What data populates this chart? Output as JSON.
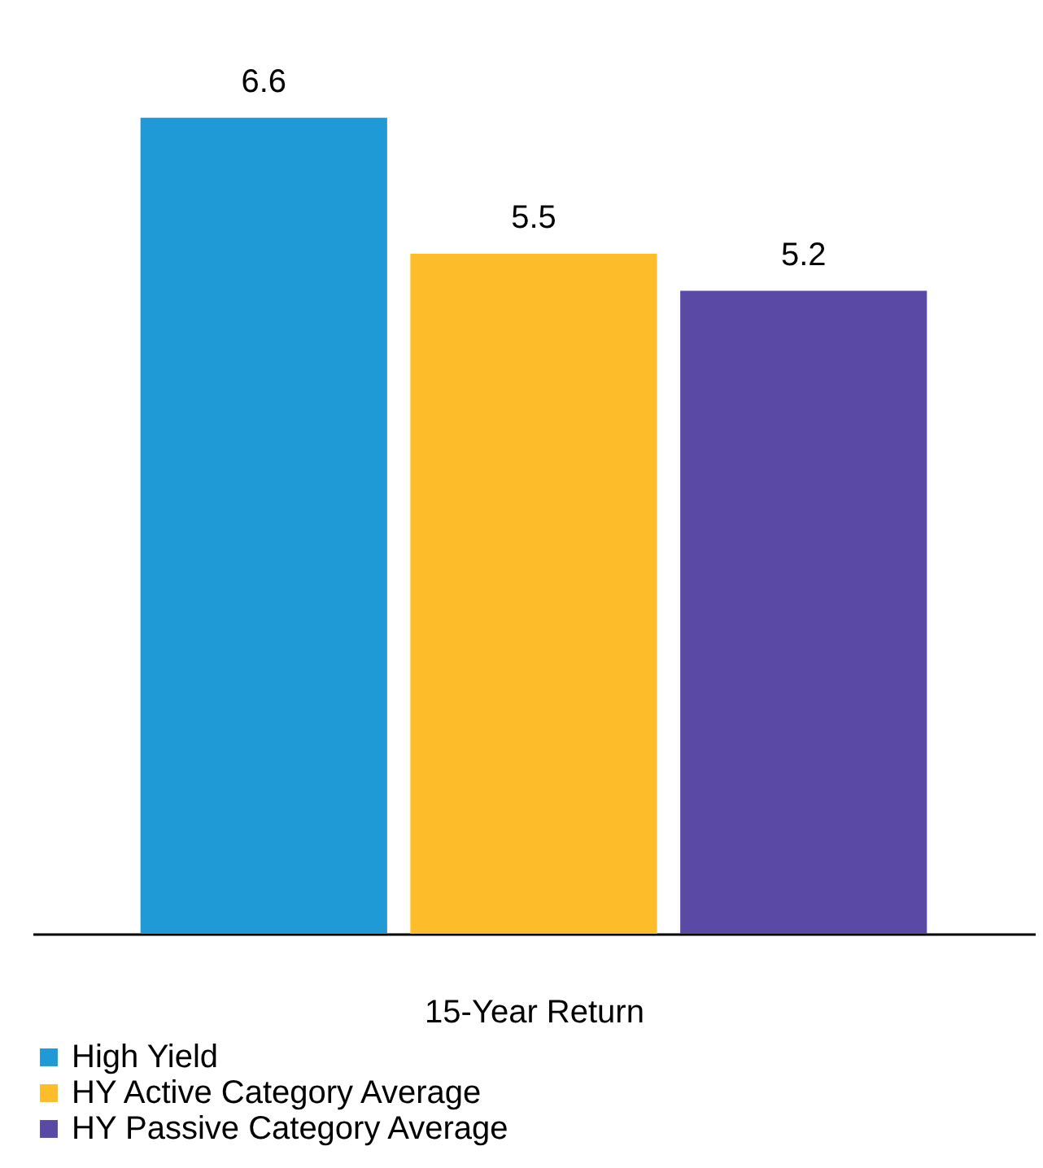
{
  "chart_data": {
    "type": "bar",
    "stacked": true,
    "xlabel": "15-Year Return",
    "categories": [
      null,
      null,
      null
    ],
    "series": [
      {
        "name": "High Yield",
        "color": "#1f9ad6",
        "values": [
          6.6,
          null,
          null
        ]
      },
      {
        "name": "HY Active Category Average",
        "color": "#fdbd2a",
        "values": [
          null,
          5.5,
          null
        ]
      },
      {
        "name": "HY Passive Category Average",
        "color": "#5a4aa5",
        "values": [
          null,
          null,
          5.2
        ]
      }
    ],
    "data_labels": true,
    "legend": "bottom"
  }
}
